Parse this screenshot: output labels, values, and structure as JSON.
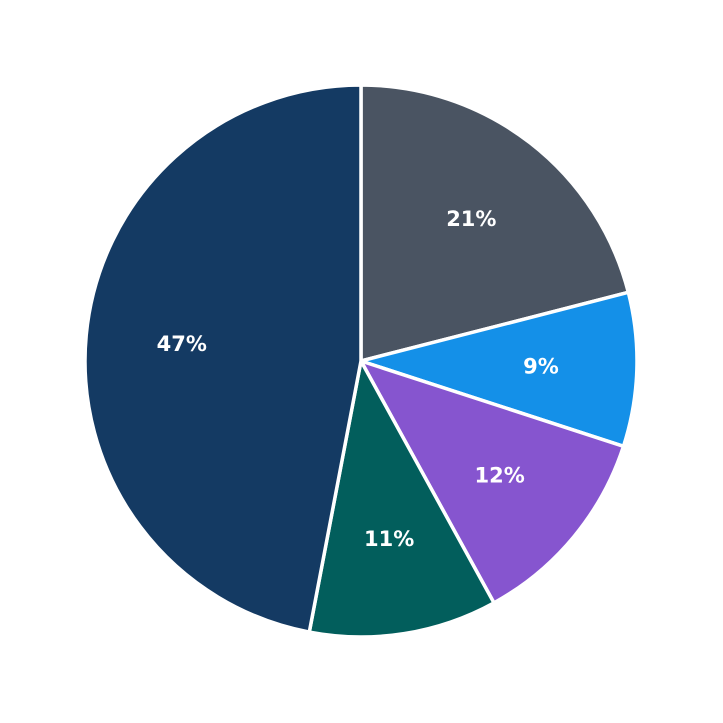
{
  "chart_data": {
    "type": "pie",
    "start_angle_deg": 0,
    "direction": "clockwise",
    "slices": [
      {
        "value": 21,
        "label": "21%",
        "color": "#4a5462"
      },
      {
        "value": 9,
        "label": "9%",
        "color": "#1490e8"
      },
      {
        "value": 12,
        "label": "12%",
        "color": "#8655cf"
      },
      {
        "value": 11,
        "label": "11%",
        "color": "#025e5c"
      },
      {
        "value": 47,
        "label": "47%",
        "color": "#143a63"
      }
    ]
  }
}
